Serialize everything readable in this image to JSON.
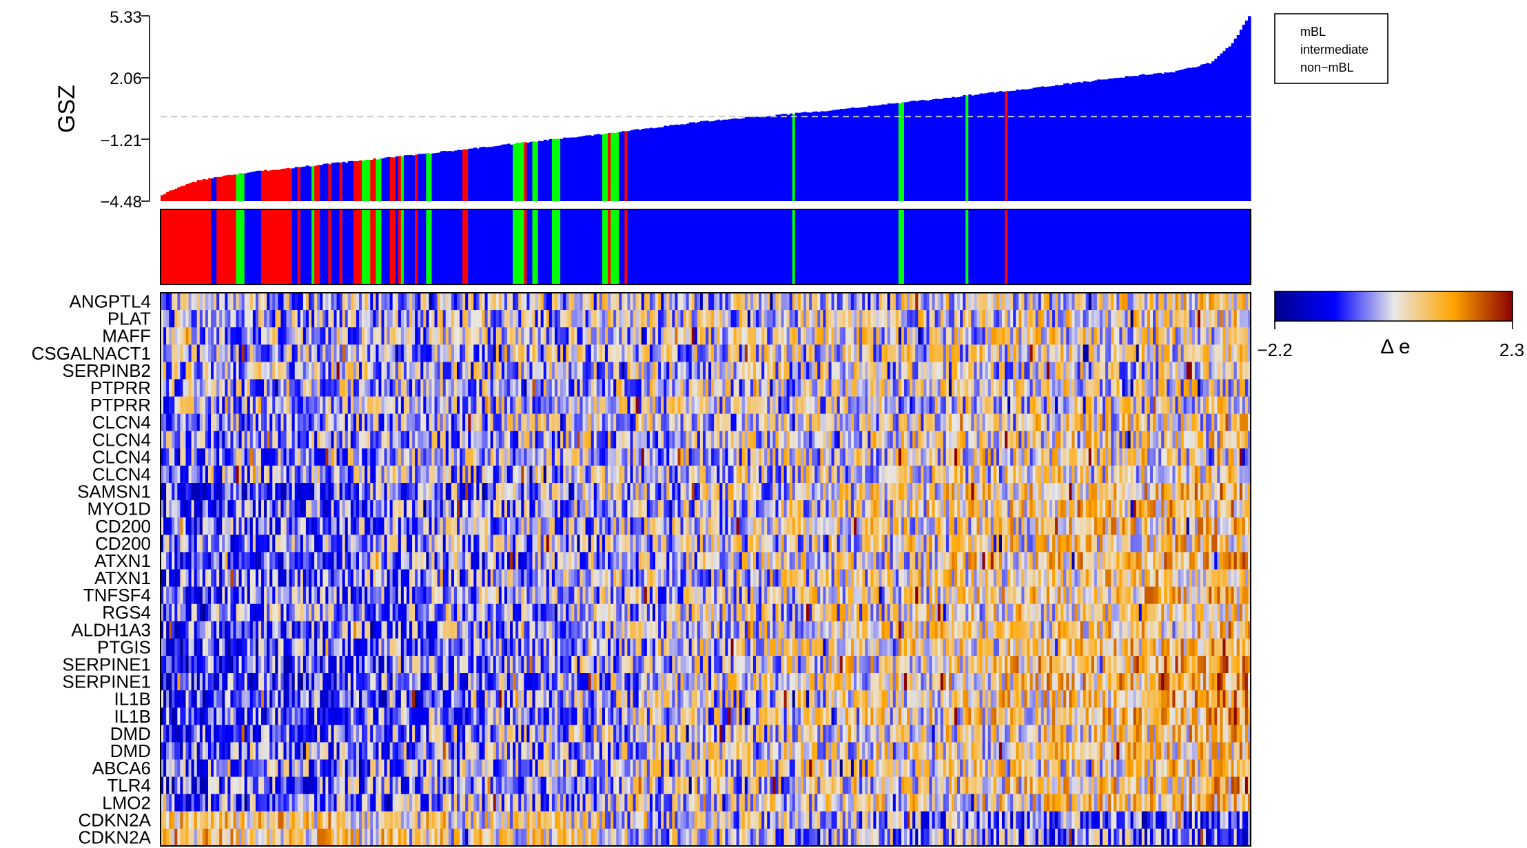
{
  "chart_data": [
    {
      "type": "bar",
      "role": "gsz-ranked-samples",
      "ylabel": "GSZ",
      "ylim": [
        -4.48,
        5.33
      ],
      "yticks": [
        "5.33",
        "2.06",
        "−1.21",
        "−4.48"
      ],
      "ytick_values": [
        5.33,
        2.06,
        -1.21,
        -4.48
      ],
      "reference_line": {
        "y": 0.0,
        "style": "dashed"
      },
      "n_samples": 390,
      "curve_knots": [
        {
          "rank_fraction": 0.0,
          "gsz": -4.2
        },
        {
          "rank_fraction": 0.004,
          "gsz": -4.05
        },
        {
          "rank_fraction": 0.012,
          "gsz": -3.8
        },
        {
          "rank_fraction": 0.035,
          "gsz": -3.35
        },
        {
          "rank_fraction": 0.08,
          "gsz": -2.95
        },
        {
          "rank_fraction": 0.18,
          "gsz": -2.35
        },
        {
          "rank_fraction": 0.3,
          "gsz": -1.6
        },
        {
          "rank_fraction": 0.4,
          "gsz": -0.95
        },
        {
          "rank_fraction": 0.5,
          "gsz": -0.25
        },
        {
          "rank_fraction": 0.6,
          "gsz": 0.25
        },
        {
          "rank_fraction": 0.7,
          "gsz": 0.85
        },
        {
          "rank_fraction": 0.8,
          "gsz": 1.5
        },
        {
          "rank_fraction": 0.9,
          "gsz": 2.2
        },
        {
          "rank_fraction": 0.93,
          "gsz": 2.35
        },
        {
          "rank_fraction": 0.965,
          "gsz": 2.85
        },
        {
          "rank_fraction": 0.985,
          "gsz": 3.9
        },
        {
          "rank_fraction": 1.0,
          "gsz": 5.33
        }
      ],
      "class_mix": [
        {
          "upto_fraction": 0.12,
          "mBL": 0.85,
          "intermediate": 0.1,
          "non_mBL": 0.05
        },
        {
          "upto_fraction": 0.2,
          "mBL": 0.4,
          "intermediate": 0.35,
          "non_mBL": 0.25
        },
        {
          "upto_fraction": 0.35,
          "mBL": 0.15,
          "intermediate": 0.2,
          "non_mBL": 0.65
        },
        {
          "upto_fraction": 0.5,
          "mBL": 0.06,
          "intermediate": 0.16,
          "non_mBL": 0.78
        },
        {
          "upto_fraction": 0.72,
          "mBL": 0.03,
          "intermediate": 0.12,
          "non_mBL": 0.85
        },
        {
          "upto_fraction": 0.9,
          "mBL": 0.02,
          "intermediate": 0.08,
          "non_mBL": 0.9
        },
        {
          "upto_fraction": 1.0,
          "mBL": 0.0,
          "intermediate": 0.0,
          "non_mBL": 1.0
        }
      ],
      "series": [
        {
          "name": "mBL",
          "color": "#ff0000"
        },
        {
          "name": "intermediate",
          "color": "#00ff00"
        },
        {
          "name": "non−mBL",
          "color": "#0000ff"
        }
      ],
      "legend_position": "top-right"
    },
    {
      "type": "heatmap",
      "role": "delta-expression",
      "rows": [
        "ANGPTL4",
        "PLAT",
        "MAFF",
        "CSGALNACT1",
        "SERPINB2",
        "PTPRR",
        "PTPRR",
        "CLCN4",
        "CLCN4",
        "CLCN4",
        "CLCN4",
        "SAMSN1",
        "MYO1D",
        "CD200",
        "CD200",
        "ATXN1",
        "ATXN1",
        "TNFSF4",
        "RGS4",
        "ALDH1A3",
        "PTGIS",
        "SERPINE1",
        "SERPINE1",
        "IL1B",
        "IL1B",
        "DMD",
        "DMD",
        "ABCA6",
        "TLR4",
        "LMO2",
        "CDKN2A",
        "CDKN2A"
      ],
      "row_trend": [
        0.3,
        0.25,
        0.25,
        0.3,
        0.1,
        0.2,
        0.2,
        0.3,
        0.35,
        0.35,
        0.35,
        0.75,
        0.7,
        0.6,
        0.55,
        0.7,
        0.6,
        0.65,
        0.5,
        0.65,
        0.7,
        0.9,
        0.85,
        0.8,
        0.75,
        0.6,
        0.55,
        0.5,
        0.65,
        0.6,
        -0.7,
        -0.6
      ],
      "value_range": [
        -2.2,
        2.3
      ],
      "colorbar": {
        "label": "Δ e",
        "min_label": "−2.2",
        "max_label": "2.3",
        "colors": [
          "#00008b",
          "#0000ff",
          "#e8e8e8",
          "#ffa500",
          "#8b0000"
        ]
      }
    }
  ]
}
